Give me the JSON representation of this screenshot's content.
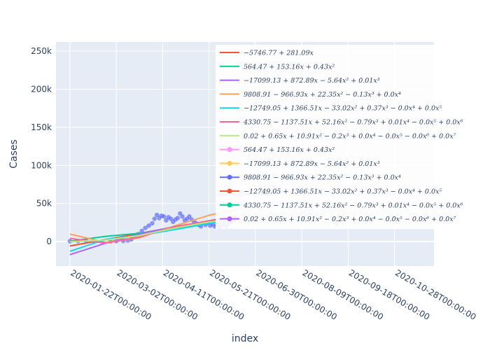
{
  "chart_data": {
    "type": "scatter",
    "title": "",
    "xlabel": "index",
    "ylabel": "Cases",
    "x_tick_labels": [
      "2020-01-22T00:00:00",
      "2020-03-02T00:00:00",
      "2020-04-11T00:00:00",
      "2020-05-21T00:00:00",
      "2020-06-30T00:00:00",
      "2020-08-09T00:00:00",
      "2020-09-18T00:00:00",
      "2020-10-28T00:00:00"
    ],
    "x_range": [
      "2020-01-10",
      "2020-12-01"
    ],
    "y_tick_values": [
      0,
      50000,
      100000,
      150000,
      200000,
      250000
    ],
    "y_tick_labels": [
      "0",
      "50k",
      "100k",
      "150k",
      "200k",
      "250k"
    ],
    "ylim": [
      -32000,
      262000
    ],
    "grid": true,
    "legend_position": "right (overlapping plot)",
    "scatter_points": [
      {
        "x": "2020-01-22",
        "y": 500
      },
      {
        "x": "2020-01-29",
        "y": 800
      },
      {
        "x": "2020-02-05",
        "y": 600
      },
      {
        "x": "2020-02-12",
        "y": 300
      },
      {
        "x": "2020-02-19",
        "y": 200
      },
      {
        "x": "2020-02-26",
        "y": 400
      },
      {
        "x": "2020-03-02",
        "y": 600
      },
      {
        "x": "2020-03-08",
        "y": 900
      },
      {
        "x": "2020-03-12",
        "y": 1500
      },
      {
        "x": "2020-03-15",
        "y": 3000
      },
      {
        "x": "2020-03-18",
        "y": 6000
      },
      {
        "x": "2020-03-21",
        "y": 10000
      },
      {
        "x": "2020-03-24",
        "y": 14000
      },
      {
        "x": "2020-03-27",
        "y": 18000
      },
      {
        "x": "2020-03-30",
        "y": 21000
      },
      {
        "x": "2020-04-02",
        "y": 24000
      },
      {
        "x": "2020-04-04",
        "y": 30000
      },
      {
        "x": "2020-04-06",
        "y": 35000
      },
      {
        "x": "2020-04-08",
        "y": 31000
      },
      {
        "x": "2020-04-10",
        "y": 34000
      },
      {
        "x": "2020-04-12",
        "y": 33000
      },
      {
        "x": "2020-04-14",
        "y": 28000
      },
      {
        "x": "2020-04-16",
        "y": 32000
      },
      {
        "x": "2020-04-18",
        "y": 30000
      },
      {
        "x": "2020-04-20",
        "y": 26000
      },
      {
        "x": "2020-04-22",
        "y": 29000
      },
      {
        "x": "2020-04-24",
        "y": 31000
      },
      {
        "x": "2020-04-26",
        "y": 37000
      },
      {
        "x": "2020-04-28",
        "y": 33000
      },
      {
        "x": "2020-04-30",
        "y": 28000
      },
      {
        "x": "2020-05-02",
        "y": 30000
      },
      {
        "x": "2020-05-04",
        "y": 33000
      },
      {
        "x": "2020-05-06",
        "y": 29000
      },
      {
        "x": "2020-05-08",
        "y": 26000
      },
      {
        "x": "2020-05-10",
        "y": 24000
      },
      {
        "x": "2020-05-12",
        "y": 22000
      },
      {
        "x": "2020-05-14",
        "y": 20000
      },
      {
        "x": "2020-05-16",
        "y": 24000
      },
      {
        "x": "2020-05-18",
        "y": 22000
      },
      {
        "x": "2020-05-20",
        "y": 25000
      },
      {
        "x": "2020-05-22",
        "y": 21000
      },
      {
        "x": "2020-05-24",
        "y": 23000
      },
      {
        "x": "2020-05-26",
        "y": 20000
      },
      {
        "x": "2020-05-28",
        "y": 22000
      },
      {
        "x": "2020-05-30",
        "y": 19000
      },
      {
        "x": "2020-06-01",
        "y": 21000
      },
      {
        "x": "2020-06-03",
        "y": 23000
      },
      {
        "x": "2020-06-05",
        "y": 20000
      },
      {
        "x": "2020-06-07",
        "y": 24000
      },
      {
        "x": "2020-06-09",
        "y": 26000
      },
      {
        "x": "2020-06-11",
        "y": 28000
      },
      {
        "x": "2020-06-13",
        "y": 30000
      },
      {
        "x": "2020-09-08",
        "y": 24000
      }
    ],
    "series": [
      {
        "name": "−5746.77 + 281.09x",
        "color": "#EF553B",
        "values": [
          {
            "x": "2020-01-22",
            "y": -5747
          },
          {
            "x": "2020-06-14",
            "y": 34000
          }
        ]
      },
      {
        "name": "564.47 + 153.16x + 0.43x²",
        "color": "#00CC96",
        "values": [
          {
            "x": "2020-01-22",
            "y": 564
          },
          {
            "x": "2020-02-22",
            "y": 7000
          },
          {
            "x": "2020-03-22",
            "y": 11000
          },
          {
            "x": "2020-04-22",
            "y": 18000
          },
          {
            "x": "2020-05-22",
            "y": 24000
          },
          {
            "x": "2020-06-14",
            "y": 30000
          }
        ]
      },
      {
        "name": "−17099.13 + 872.89x − 5.64x² + 0.01x³",
        "color": "#AB63FA",
        "values": [
          {
            "x": "2020-01-22",
            "y": -17099
          },
          {
            "x": "2020-02-22",
            "y": -2000
          },
          {
            "x": "2020-03-22",
            "y": 10000
          },
          {
            "x": "2020-04-22",
            "y": 20000
          },
          {
            "x": "2020-05-22",
            "y": 27000
          },
          {
            "x": "2020-06-14",
            "y": 31000
          }
        ]
      },
      {
        "name": "9808.91 − 966.93x + 22.35x² − 0.13x³ + 0.0x⁴",
        "color": "#FFA15A",
        "values": [
          {
            "x": "2020-01-22",
            "y": 9809
          },
          {
            "x": "2020-02-22",
            "y": -1000
          },
          {
            "x": "2020-03-22",
            "y": 5000
          },
          {
            "x": "2020-04-22",
            "y": 21000
          },
          {
            "x": "2020-05-22",
            "y": 35000
          },
          {
            "x": "2020-06-14",
            "y": 42000
          }
        ]
      },
      {
        "name": "−12749.05 + 1366.51x − 33.02x² + 0.37x³ − 0.0x⁴ + 0.0x⁵",
        "color": "#19D3F3",
        "values": [
          {
            "x": "2020-01-22",
            "y": -12749
          },
          {
            "x": "2020-02-22",
            "y": 3000
          },
          {
            "x": "2020-03-22",
            "y": 8000
          },
          {
            "x": "2020-04-22",
            "y": 16000
          },
          {
            "x": "2020-05-22",
            "y": 24000
          },
          {
            "x": "2020-06-14",
            "y": 30000
          }
        ]
      },
      {
        "name": "4330.75 − 1137.51x + 52.16x² − 0.79x³ + 0.01x⁴ − 0.0x⁵ + 0.0x⁶",
        "color": "#FF6692",
        "values": [
          {
            "x": "2020-01-22",
            "y": 4331
          },
          {
            "x": "2020-02-22",
            "y": -2000
          },
          {
            "x": "2020-03-22",
            "y": 6000
          },
          {
            "x": "2020-04-22",
            "y": 20000
          },
          {
            "x": "2020-05-22",
            "y": 27000
          },
          {
            "x": "2020-06-14",
            "y": 30000
          }
        ]
      },
      {
        "name": "0.02 + 0.65x + 10.91x² − 0.2x³ + 0.0x⁴ − 0.0x⁵ − 0.0x⁶ + 0.0x⁷",
        "color": "#B6E880",
        "values": [
          {
            "x": "2020-01-22",
            "y": 0
          },
          {
            "x": "2020-02-22",
            "y": 2000
          },
          {
            "x": "2020-03-22",
            "y": 8000
          },
          {
            "x": "2020-04-22",
            "y": 18000
          },
          {
            "x": "2020-05-22",
            "y": 26000
          },
          {
            "x": "2020-06-14",
            "y": 30000
          }
        ]
      }
    ],
    "legend": [
      {
        "label": "−5746.77 + 281.09x",
        "color": "#EF553B",
        "kind": "line"
      },
      {
        "label": "564.47 + 153.16x + 0.43x²",
        "color": "#00CC96",
        "kind": "line"
      },
      {
        "label": "−17099.13 + 872.89x − 5.64x² + 0.01x³",
        "color": "#AB63FA",
        "kind": "line"
      },
      {
        "label": "9808.91 − 966.93x + 22.35x² − 0.13x³ + 0.0x⁴",
        "color": "#FFA15A",
        "kind": "line"
      },
      {
        "label": "−12749.05 + 1366.51x − 33.02x² + 0.37x³ − 0.0x⁴ + 0.0x⁵",
        "color": "#19D3F3",
        "kind": "line"
      },
      {
        "label": "4330.75 − 1137.51x + 52.16x² − 0.79x³ + 0.01x⁴ − 0.0x⁵ + 0.0x⁶",
        "color": "#FF6692",
        "kind": "line"
      },
      {
        "label": "0.02 + 0.65x + 10.91x² − 0.2x³ + 0.0x⁴ − 0.0x⁵ − 0.0x⁶ + 0.0x⁷",
        "color": "#B6E880",
        "kind": "line"
      },
      {
        "label": "564.47 + 153.16x + 0.43x²",
        "color": "#FF97FF",
        "kind": "marker"
      },
      {
        "label": "−17099.13 + 872.89x − 5.64x² + 0.01x³",
        "color": "#FECB52",
        "kind": "marker"
      },
      {
        "label": "9808.91 − 966.93x + 22.35x² − 0.13x³ + 0.0x⁴",
        "color": "#636EFA",
        "kind": "marker"
      },
      {
        "label": "−12749.05 + 1366.51x − 33.02x² + 0.37x³ − 0.0x⁴ + 0.0x⁵",
        "color": "#EF553B",
        "kind": "marker"
      },
      {
        "label": "4330.75 − 1137.51x + 52.16x² − 0.79x³ + 0.01x⁴ − 0.0x⁵ + 0.0x⁶",
        "color": "#00CC96",
        "kind": "marker"
      },
      {
        "label": "0.02 + 0.65x + 10.91x² − 0.2x³ + 0.0x⁴ − 0.0x⁵ − 0.0x⁶ + 0.0x⁷",
        "color": "#AB63FA",
        "kind": "marker"
      }
    ],
    "colors": {
      "plot_bg": "#E5ECF6",
      "grid": "#ffffff",
      "scatter": "#636EFA",
      "text": "#2a3f5f"
    }
  }
}
